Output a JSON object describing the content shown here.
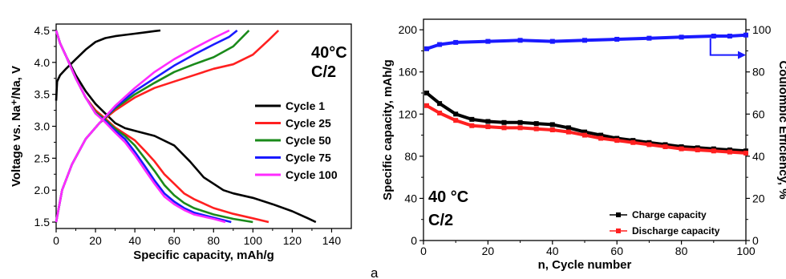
{
  "chart_data": [
    {
      "type": "line",
      "xlabel": "Specific capacity, mAh/g",
      "ylabel": "Voltage vs. Na⁺/Na, V",
      "xlim": [
        0,
        150
      ],
      "ylim": [
        1.4,
        4.6
      ],
      "xticks": [
        "0",
        "20",
        "40",
        "60",
        "80",
        "100",
        "120",
        "140"
      ],
      "yticks": [
        "1.5",
        "2.0",
        "2.5",
        "3.0",
        "3.5",
        "4.0",
        "4.5"
      ],
      "annotation_line1": "40°C",
      "annotation_line2": "C/2",
      "legend_position": "right",
      "colors": [
        "#000000",
        "#ff2020",
        "#1a8a1a",
        "#1a1aff",
        "#ff2bff"
      ],
      "series": [
        {
          "name": "Cycle 1",
          "charge": [
            [
              0,
              3.4
            ],
            [
              0.5,
              3.7
            ],
            [
              2,
              3.8
            ],
            [
              5,
              3.9
            ],
            [
              10,
              4.05
            ],
            [
              15,
              4.2
            ],
            [
              20,
              4.32
            ],
            [
              25,
              4.38
            ],
            [
              30,
              4.41
            ],
            [
              35,
              4.43
            ],
            [
              40,
              4.45
            ],
            [
              45,
              4.47
            ],
            [
              50,
              4.49
            ],
            [
              53,
              4.5
            ]
          ],
          "discharge": [
            [
              0,
              4.5
            ],
            [
              2,
              4.3
            ],
            [
              5,
              4.1
            ],
            [
              10,
              3.8
            ],
            [
              15,
              3.55
            ],
            [
              20,
              3.35
            ],
            [
              25,
              3.2
            ],
            [
              30,
              3.05
            ],
            [
              35,
              2.97
            ],
            [
              40,
              2.93
            ],
            [
              50,
              2.85
            ],
            [
              60,
              2.7
            ],
            [
              68,
              2.45
            ],
            [
              75,
              2.2
            ],
            [
              80,
              2.1
            ],
            [
              85,
              2.0
            ],
            [
              90,
              1.95
            ],
            [
              100,
              1.88
            ],
            [
              110,
              1.78
            ],
            [
              120,
              1.67
            ],
            [
              128,
              1.56
            ],
            [
              132,
              1.5
            ]
          ]
        },
        {
          "name": "Cycle 25",
          "charge": [
            [
              0,
              1.5
            ],
            [
              3,
              2.0
            ],
            [
              8,
              2.4
            ],
            [
              15,
              2.8
            ],
            [
              22,
              3.05
            ],
            [
              30,
              3.25
            ],
            [
              40,
              3.45
            ],
            [
              50,
              3.6
            ],
            [
              60,
              3.7
            ],
            [
              70,
              3.8
            ],
            [
              80,
              3.9
            ],
            [
              90,
              3.97
            ],
            [
              100,
              4.12
            ],
            [
              108,
              4.35
            ],
            [
              113,
              4.5
            ]
          ],
          "discharge": [
            [
              0,
              4.5
            ],
            [
              2,
              4.3
            ],
            [
              5,
              4.1
            ],
            [
              10,
              3.75
            ],
            [
              15,
              3.45
            ],
            [
              20,
              3.25
            ],
            [
              25,
              3.12
            ],
            [
              30,
              2.98
            ],
            [
              35,
              2.88
            ],
            [
              40,
              2.78
            ],
            [
              45,
              2.62
            ],
            [
              50,
              2.45
            ],
            [
              55,
              2.25
            ],
            [
              60,
              2.1
            ],
            [
              65,
              1.95
            ],
            [
              70,
              1.86
            ],
            [
              80,
              1.72
            ],
            [
              90,
              1.63
            ],
            [
              100,
              1.56
            ],
            [
              108,
              1.5
            ]
          ]
        },
        {
          "name": "Cycle 50",
          "charge": [
            [
              0,
              1.5
            ],
            [
              3,
              2.0
            ],
            [
              8,
              2.4
            ],
            [
              15,
              2.8
            ],
            [
              22,
              3.05
            ],
            [
              30,
              3.28
            ],
            [
              40,
              3.5
            ],
            [
              50,
              3.68
            ],
            [
              60,
              3.85
            ],
            [
              70,
              3.97
            ],
            [
              80,
              4.08
            ],
            [
              90,
              4.25
            ],
            [
              98,
              4.5
            ]
          ],
          "discharge": [
            [
              0,
              4.5
            ],
            [
              2,
              4.3
            ],
            [
              5,
              4.1
            ],
            [
              10,
              3.75
            ],
            [
              15,
              3.45
            ],
            [
              20,
              3.22
            ],
            [
              25,
              3.1
            ],
            [
              30,
              2.96
            ],
            [
              35,
              2.85
            ],
            [
              40,
              2.7
            ],
            [
              45,
              2.5
            ],
            [
              50,
              2.3
            ],
            [
              55,
              2.08
            ],
            [
              60,
              1.92
            ],
            [
              65,
              1.8
            ],
            [
              70,
              1.72
            ],
            [
              80,
              1.62
            ],
            [
              90,
              1.55
            ],
            [
              100,
              1.5
            ]
          ]
        },
        {
          "name": "Cycle 75",
          "charge": [
            [
              0,
              1.5
            ],
            [
              3,
              2.0
            ],
            [
              8,
              2.4
            ],
            [
              15,
              2.8
            ],
            [
              22,
              3.05
            ],
            [
              30,
              3.3
            ],
            [
              40,
              3.55
            ],
            [
              50,
              3.75
            ],
            [
              60,
              3.95
            ],
            [
              70,
              4.12
            ],
            [
              80,
              4.28
            ],
            [
              88,
              4.4
            ],
            [
              92,
              4.5
            ]
          ],
          "discharge": [
            [
              0,
              4.5
            ],
            [
              2,
              4.3
            ],
            [
              5,
              4.1
            ],
            [
              10,
              3.75
            ],
            [
              15,
              3.45
            ],
            [
              20,
              3.2
            ],
            [
              25,
              3.08
            ],
            [
              30,
              2.93
            ],
            [
              35,
              2.8
            ],
            [
              40,
              2.6
            ],
            [
              45,
              2.38
            ],
            [
              50,
              2.15
            ],
            [
              55,
              1.95
            ],
            [
              60,
              1.82
            ],
            [
              65,
              1.72
            ],
            [
              70,
              1.65
            ],
            [
              80,
              1.57
            ],
            [
              89,
              1.5
            ]
          ]
        },
        {
          "name": "Cycle 100",
          "charge": [
            [
              0,
              1.5
            ],
            [
              3,
              2.0
            ],
            [
              8,
              2.4
            ],
            [
              15,
              2.8
            ],
            [
              22,
              3.05
            ],
            [
              30,
              3.32
            ],
            [
              40,
              3.6
            ],
            [
              50,
              3.85
            ],
            [
              60,
              4.05
            ],
            [
              70,
              4.22
            ],
            [
              80,
              4.38
            ],
            [
              88,
              4.5
            ]
          ],
          "discharge": [
            [
              0,
              4.5
            ],
            [
              2,
              4.3
            ],
            [
              5,
              4.1
            ],
            [
              10,
              3.75
            ],
            [
              15,
              3.45
            ],
            [
              20,
              3.2
            ],
            [
              25,
              3.06
            ],
            [
              30,
              2.9
            ],
            [
              35,
              2.75
            ],
            [
              40,
              2.55
            ],
            [
              45,
              2.32
            ],
            [
              50,
              2.1
            ],
            [
              55,
              1.9
            ],
            [
              60,
              1.78
            ],
            [
              65,
              1.69
            ],
            [
              70,
              1.62
            ],
            [
              80,
              1.55
            ],
            [
              86,
              1.5
            ]
          ]
        }
      ]
    },
    {
      "type": "scatter",
      "xlabel": "n, Cycle number",
      "ylabel": "Specific capacity, mAh/g",
      "y2label": "Coulombic Efficiency, %",
      "xlim": [
        0,
        100
      ],
      "ylim": [
        0,
        210
      ],
      "y2lim": [
        0,
        105
      ],
      "xticks": [
        "0",
        "20",
        "40",
        "60",
        "80",
        "100"
      ],
      "yticks": [
        "0",
        "40",
        "80",
        "120",
        "160",
        "200"
      ],
      "y2ticks": [
        "0",
        "20",
        "40",
        "60",
        "80",
        "100"
      ],
      "annotation_line1": "40 °C",
      "annotation_line2": "C/2",
      "legend_position": "bottom-right",
      "colors": {
        "charge": "#000000",
        "discharge": "#ff2020",
        "efficiency": "#1a1aff"
      },
      "series": [
        {
          "name": "Charge capacity",
          "x": [
            1,
            5,
            10,
            15,
            20,
            25,
            30,
            35,
            40,
            45,
            50,
            55,
            60,
            65,
            70,
            75,
            80,
            85,
            90,
            95,
            100
          ],
          "y": [
            140,
            130,
            120,
            115,
            113,
            112,
            112,
            111,
            110,
            107,
            103,
            100,
            97,
            95,
            93,
            91,
            89,
            88,
            87,
            86,
            85
          ]
        },
        {
          "name": "Discharge capacity",
          "x": [
            1,
            5,
            10,
            15,
            20,
            25,
            30,
            35,
            40,
            45,
            50,
            55,
            60,
            65,
            70,
            75,
            80,
            85,
            90,
            95,
            100
          ],
          "y": [
            128,
            121,
            114,
            109,
            108,
            107,
            107,
            106,
            105,
            103,
            100,
            97,
            95,
            93,
            91,
            89,
            87,
            86,
            85,
            84,
            83
          ]
        },
        {
          "name": "Coulombic Efficiency",
          "x": [
            1,
            5,
            10,
            20,
            30,
            40,
            50,
            60,
            70,
            80,
            90,
            95,
            100
          ],
          "y": [
            91,
            93,
            94,
            94.5,
            95,
            94.5,
            95,
            95.5,
            96,
            96.5,
            97,
            97,
            97.5
          ]
        }
      ]
    }
  ],
  "panel_label": "a"
}
